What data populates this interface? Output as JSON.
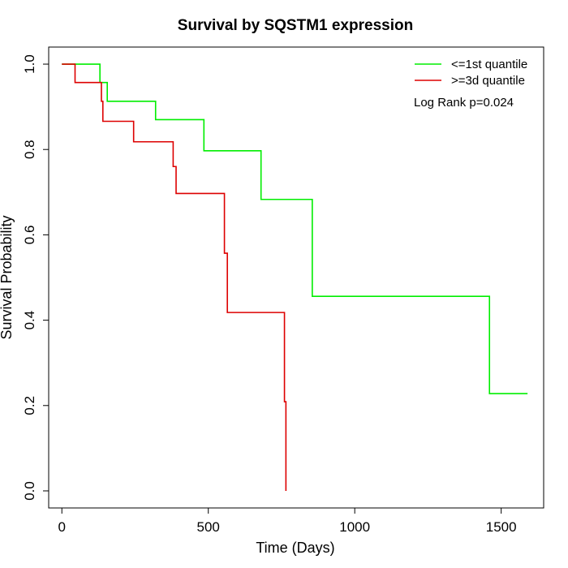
{
  "chart_data": {
    "type": "line",
    "title": "Survival by SQSTM1 expression",
    "xlabel": "Time (Days)",
    "ylabel": "Survival Probability",
    "xlim": [
      -45,
      1645
    ],
    "ylim": [
      -0.04,
      1.04
    ],
    "x_ticks": [
      0,
      500,
      1000,
      1500
    ],
    "y_ticks": [
      0.0,
      0.2,
      0.4,
      0.6,
      0.8,
      1.0
    ],
    "x_tick_labels": [
      "0",
      "500",
      "1000",
      "1500"
    ],
    "y_tick_labels": [
      "0.0",
      "0.2",
      "0.4",
      "0.6",
      "0.8",
      "1.0"
    ],
    "grid": false,
    "legend_position": "top-right",
    "annotation": "Log Rank p=0.024",
    "series": [
      {
        "name": "<=1st quantile",
        "color": "#00ee00",
        "step": true,
        "x": [
          0,
          130,
          155,
          320,
          485,
          680,
          855,
          1460,
          1590
        ],
        "y": [
          1.0,
          0.957,
          0.913,
          0.87,
          0.797,
          0.683,
          0.456,
          0.228,
          0.228
        ]
      },
      {
        "name": ">=3d quantile",
        "color": "#dd0000",
        "step": true,
        "x": [
          0,
          45,
          135,
          140,
          245,
          380,
          390,
          555,
          565,
          760,
          765
        ],
        "y": [
          1.0,
          0.957,
          0.913,
          0.866,
          0.818,
          0.76,
          0.697,
          0.557,
          0.418,
          0.209,
          0.0
        ]
      }
    ]
  }
}
